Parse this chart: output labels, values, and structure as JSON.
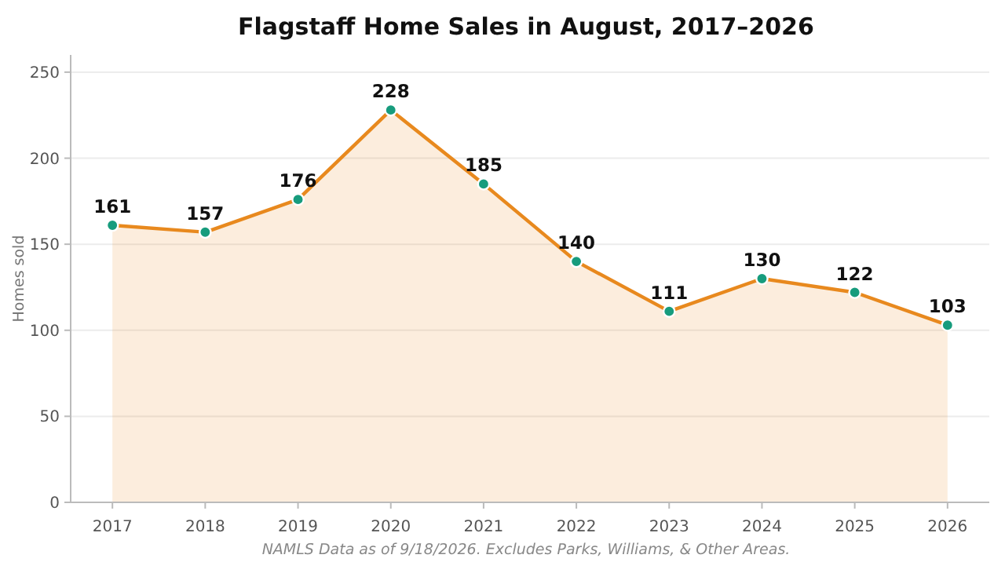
{
  "chart_data": {
    "type": "area",
    "title": "Flagstaff Home Sales in August, 2017–2026",
    "ylabel": "Homes sold",
    "categories": [
      "2017",
      "2018",
      "2019",
      "2020",
      "2021",
      "2022",
      "2023",
      "2024",
      "2025",
      "2026"
    ],
    "series": [
      {
        "color": "#e8891e",
        "values": [
          161,
          157,
          176,
          228,
          185,
          140,
          111,
          130,
          122,
          103
        ]
      }
    ],
    "ylim": [
      0,
      260
    ],
    "yticks": [
      0,
      50,
      100,
      150,
      200,
      250
    ],
    "grid": "y",
    "marker": "circle",
    "data_labels": true,
    "annotations": [
      "NAMLS Data as of 9/18/2026. Excludes Parks, Williams, & Other Areas."
    ]
  }
}
